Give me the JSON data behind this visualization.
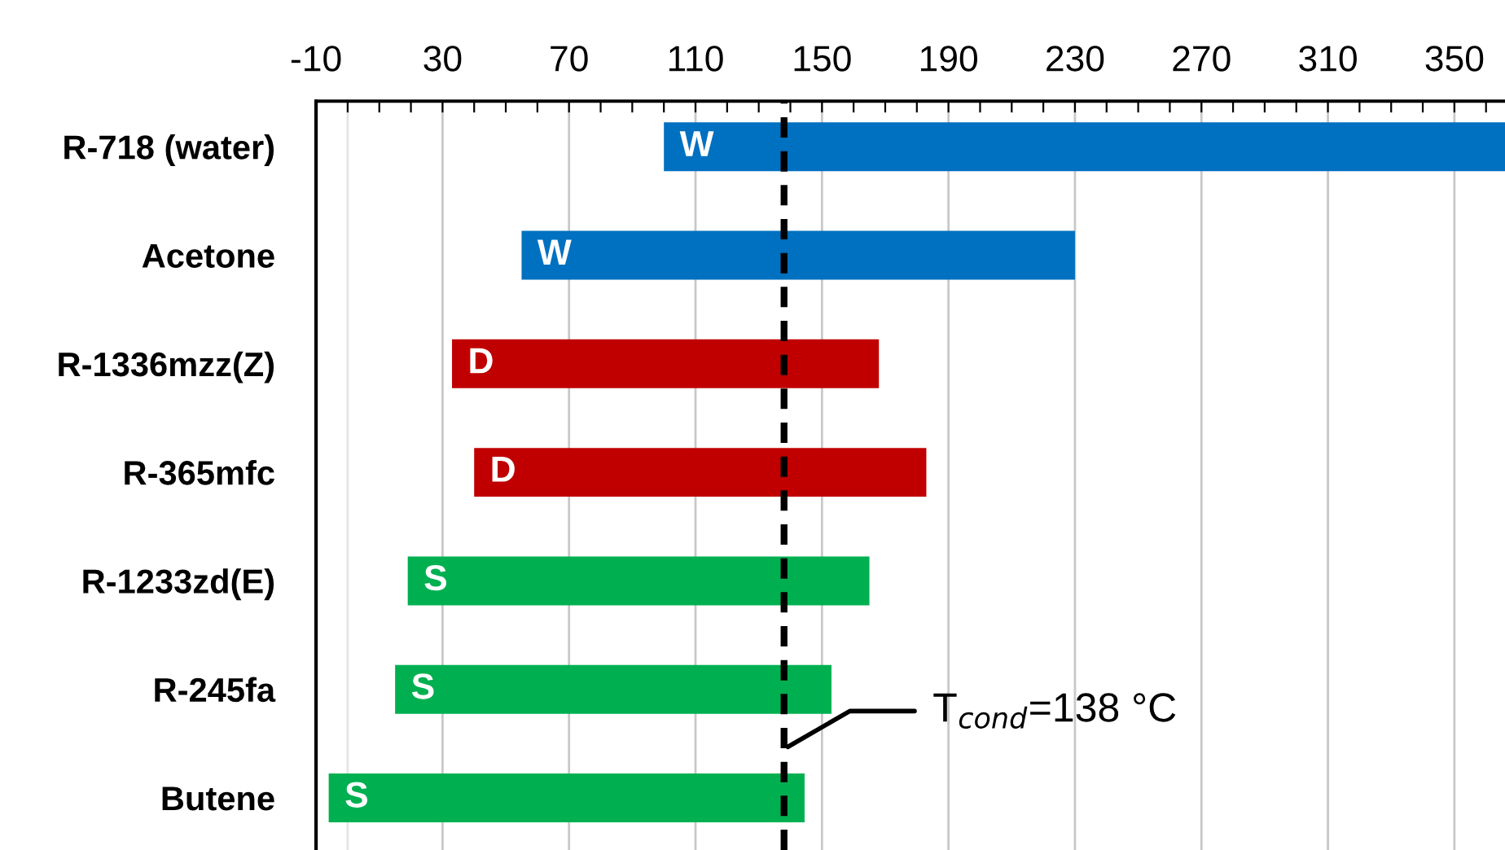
{
  "chart_data": {
    "type": "bar",
    "orientation": "horizontal",
    "categories": [
      "R-718 (water)",
      "Acetone",
      "R-1336mzz(Z)",
      "R-365mfc",
      "R-1233zd(E)",
      "R-245fa",
      "Butene"
    ],
    "base": [
      100,
      55,
      33,
      40,
      19,
      15,
      -6
    ],
    "values": [
      266,
      175,
      135,
      143,
      146,
      138,
      150.5
    ],
    "colors": [
      "#0070c0",
      "#0070c0",
      "#c00000",
      "#c00000",
      "#00b050",
      "#00b050",
      "#00b050"
    ],
    "xlim": [
      -10,
      366
    ],
    "xticks": [
      -10,
      {
        "value": 0,
        "label": null
      },
      {
        "value": 10,
        "label": null
      },
      {
        "value": 20,
        "label": null
      },
      30,
      {
        "value": 40,
        "label": null
      },
      {
        "value": 50,
        "label": null
      },
      {
        "value": 60,
        "label": null
      },
      70,
      {
        "value": 80,
        "label": null
      },
      {
        "value": 90,
        "label": null
      },
      {
        "value": 100,
        "label": null
      },
      110,
      {
        "value": 120,
        "label": null
      },
      {
        "value": 130,
        "label": null
      },
      {
        "value": 140,
        "label": null
      },
      150,
      {
        "value": 160,
        "label": null
      },
      {
        "value": 170,
        "label": null
      },
      {
        "value": 180,
        "label": null
      },
      190,
      {
        "value": 200,
        "label": null
      },
      {
        "value": 210,
        "label": null
      },
      {
        "value": 220,
        "label": null
      },
      230,
      {
        "value": 240,
        "label": null
      },
      {
        "value": 250,
        "label": null
      },
      {
        "value": 260,
        "label": null
      },
      270,
      {
        "value": 280,
        "label": null
      },
      {
        "value": 290,
        "label": null
      },
      {
        "value": 300,
        "label": null
      },
      310,
      {
        "value": 320,
        "label": null
      },
      {
        "value": 330,
        "label": null
      },
      {
        "value": 340,
        "label": null
      },
      350,
      {
        "value": 360,
        "label": null
      }
    ],
    "grid": "x",
    "annotations": [
      {
        "text": "W",
        "x": 100,
        "y": "R-718 (water)"
      },
      {
        "text": "W",
        "x": 55,
        "y": "Acetone"
      },
      {
        "text": "D",
        "x": 33,
        "y": "R-1336mzz(Z)"
      },
      {
        "text": "D",
        "x": 40,
        "y": "R-365mfc"
      },
      {
        "text": "S",
        "x": 19,
        "y": "R-1233zd(E)"
      },
      {
        "text": "S",
        "x": 15,
        "y": "R-245fa"
      },
      {
        "text": "S",
        "x": -6,
        "y": "Butene"
      }
    ],
    "ref_lines": [
      {
        "axis": "x",
        "value": 0,
        "color": "#e4e4e4",
        "line_style": "solid"
      },
      {
        "axis": "x",
        "value": 138,
        "label": "T$_{cond}$=138 °C",
        "color": "#000000",
        "line_style": "dashed"
      }
    ]
  }
}
